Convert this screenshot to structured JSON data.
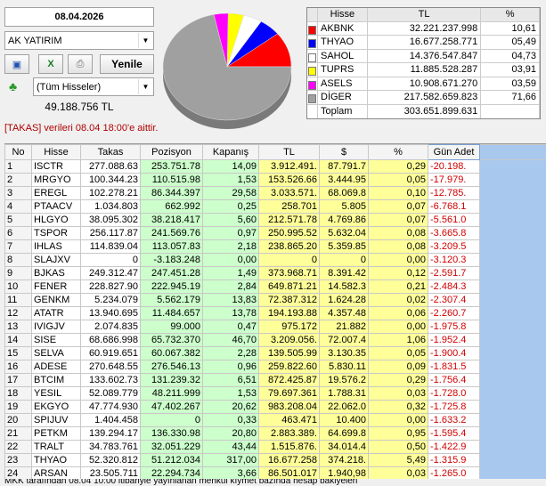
{
  "header": {
    "date": "08.04.2026",
    "broker": "AK YATIRIM",
    "refresh_button": "Yenile",
    "filter": "(Tüm Hisseler)",
    "total": "49.188.756 TL",
    "note": "[TAKAS] verileri 08.04 18:00'e aittir."
  },
  "pie_legend": {
    "columns": [
      "Hisse",
      "TL",
      "%"
    ],
    "rows": [
      {
        "name": "AKBNK",
        "color": "#ff0000",
        "tl": "32.221.237.998",
        "pct": {
          "value": 10.61,
          "label": "10,61"
        }
      },
      {
        "name": "THYAO",
        "color": "#0000ff",
        "tl": "16.677.258.771",
        "pct": {
          "value": 5.49,
          "label": "05,49"
        }
      },
      {
        "name": "SAHOL",
        "color": "#ffffff",
        "tl": "14.376.547.847",
        "pct": {
          "value": 4.73,
          "label": "04,73"
        }
      },
      {
        "name": "TUPRS",
        "color": "#ffff00",
        "tl": "11.885.528.287",
        "pct": {
          "value": 3.91,
          "label": "03,91"
        }
      },
      {
        "name": "ASELS",
        "color": "#ff00ff",
        "tl": "10.908.671.270",
        "pct": {
          "value": 3.59,
          "label": "03,59"
        }
      },
      {
        "name": "DİGER",
        "color": "#a0a0a0",
        "tl": "217.582.659.823",
        "pct": {
          "value": 71.66,
          "label": "71,66"
        }
      }
    ],
    "total": {
      "name": "Toplam",
      "tl": "303.651.899.631"
    }
  },
  "table": {
    "columns": [
      "No",
      "Hisse",
      "Takas",
      "Pozisyon",
      "Kapanış",
      "TL",
      "$",
      "%",
      "Gün Adet"
    ],
    "rows": [
      [
        "1",
        "ISCTR",
        "277.088.63",
        "253.751.78",
        "14,09",
        "3.912.491.",
        "87.791.7",
        "0,29",
        "-20.198."
      ],
      [
        "2",
        "MRGYO",
        "100.344.23",
        "110.515.98",
        "1,53",
        "153.526.66",
        "3.444.95",
        "0,05",
        "-17.979."
      ],
      [
        "3",
        "EREGL",
        "102.278.21",
        "86.344.397",
        "29,58",
        "3.033.571.",
        "68.069.8",
        "0,10",
        "-12.785."
      ],
      [
        "4",
        "PTAACV",
        "1.034.803",
        "662.992",
        "0,25",
        "258.701",
        "5.805",
        "0,07",
        "-6.768.1"
      ],
      [
        "5",
        "HLGYO",
        "38.095.302",
        "38.218.417",
        "5,60",
        "212.571.78",
        "4.769.86",
        "0,07",
        "-5.561.0"
      ],
      [
        "6",
        "TSPOR",
        "256.117.87",
        "241.569.76",
        "0,97",
        "250.995.52",
        "5.632.04",
        "0,08",
        "-3.665.8"
      ],
      [
        "7",
        "IHLAS",
        "114.839.04",
        "113.057.83",
        "2,18",
        "238.865.20",
        "5.359.85",
        "0,08",
        "-3.209.5"
      ],
      [
        "8",
        "SLAJXV",
        "0",
        "-3.183.248",
        "0,00",
        "0",
        "0",
        "0,00",
        "-3.120.3"
      ],
      [
        "9",
        "BJKAS",
        "249.312.47",
        "247.451.28",
        "1,49",
        "373.968.71",
        "8.391.42",
        "0,12",
        "-2.591.7"
      ],
      [
        "10",
        "FENER",
        "228.827.90",
        "222.945.19",
        "2,84",
        "649.871.21",
        "14.582.3",
        "0,21",
        "-2.484.3"
      ],
      [
        "11",
        "GENKM",
        "5.234.079",
        "5.562.179",
        "13,83",
        "72.387.312",
        "1.624.28",
        "0,02",
        "-2.307.4"
      ],
      [
        "12",
        "ATATR",
        "13.940.695",
        "11.484.657",
        "13,78",
        "194.193.88",
        "4.357.48",
        "0,06",
        "-2.260.7"
      ],
      [
        "13",
        "IVIGJV",
        "2.074.835",
        "99.000",
        "0,47",
        "975.172",
        "21.882",
        "0,00",
        "-1.975.8"
      ],
      [
        "14",
        "SISE",
        "68.686.998",
        "65.732.370",
        "46,70",
        "3.209.056.",
        "72.007.4",
        "1,06",
        "-1.952.4"
      ],
      [
        "15",
        "SELVA",
        "60.919.651",
        "60.067.382",
        "2,28",
        "139.505.99",
        "3.130.35",
        "0,05",
        "-1.900.4"
      ],
      [
        "16",
        "ADESE",
        "270.648.55",
        "276.546.13",
        "0,96",
        "259.822.60",
        "5.830.11",
        "0,09",
        "-1.831.5"
      ],
      [
        "17",
        "BTCIM",
        "133.602.73",
        "131.239.32",
        "6,51",
        "872.425.87",
        "19.576.2",
        "0,29",
        "-1.756.4"
      ],
      [
        "18",
        "YESIL",
        "52.089.779",
        "48.211.999",
        "1,53",
        "79.697.361",
        "1.788.31",
        "0,03",
        "-1.728.0"
      ],
      [
        "19",
        "EKGYO",
        "47.774.930",
        "47.402.267",
        "20,62",
        "983.208.04",
        "22.062.0",
        "0,32",
        "-1.725.8"
      ],
      [
        "20",
        "SPIJUV",
        "1.404.458",
        "0",
        "0,33",
        "463.471",
        "10.400",
        "0,00",
        "-1.633.2"
      ],
      [
        "21",
        "PETKM",
        "139.294.17",
        "136.330.98",
        "20,80",
        "2.883.389.",
        "64.699.8",
        "0,95",
        "-1.595.4"
      ],
      [
        "22",
        "TRALT",
        "34.783.761",
        "32.051.229",
        "43,44",
        "1.515.876.",
        "34.014.4",
        "0,50",
        "-1.422.9"
      ],
      [
        "23",
        "THYAO",
        "52.320.812",
        "51.212.034",
        "317,00",
        "16.677.258",
        "374.218.",
        "5,49",
        "-1.315.9"
      ],
      [
        "24",
        "ARSAN",
        "23.505.711",
        "22.294.734",
        "3,66",
        "86.501.017",
        "1.940,98",
        "0,03",
        "-1.265.0"
      ]
    ]
  },
  "status": "MKK tarafından 08.04 10:00 itibariyle yayınlanan menkul kıymet bazında hesap bakiyeleri"
}
